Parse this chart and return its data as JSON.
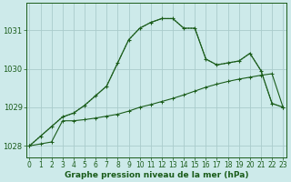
{
  "title": "Graphe pression niveau de la mer (hPa)",
  "background_color": "#cdeaea",
  "grid_color": "#aacccc",
  "line_color": "#1a5c1a",
  "xlim": [
    -0.3,
    23.3
  ],
  "ylim": [
    1027.7,
    1031.7
  ],
  "yticks": [
    1028,
    1029,
    1030,
    1031
  ],
  "xticks": [
    0,
    1,
    2,
    3,
    4,
    5,
    6,
    7,
    8,
    9,
    10,
    11,
    12,
    13,
    14,
    15,
    16,
    17,
    18,
    19,
    20,
    21,
    22,
    23
  ],
  "hours": [
    0,
    1,
    2,
    3,
    4,
    5,
    6,
    7,
    8,
    9,
    10,
    11,
    12,
    13,
    14,
    15,
    16,
    17,
    18,
    19,
    20,
    21,
    22,
    23
  ],
  "pressure_main": [
    1028.0,
    1028.25,
    1028.5,
    1028.75,
    1028.85,
    1029.05,
    1029.3,
    1029.55,
    1030.15,
    1030.75,
    1031.05,
    1031.2,
    1031.3,
    1031.3,
    1031.05,
    1031.05,
    1030.25,
    1030.1,
    1030.15,
    1030.2,
    1030.4,
    1029.95,
    1029.1,
    1029.0
  ],
  "pressure_flat": [
    1028.0,
    1028.05,
    1028.1,
    1028.65,
    1028.65,
    1028.68,
    1028.72,
    1028.77,
    1028.82,
    1028.9,
    1029.0,
    1029.07,
    1029.15,
    1029.23,
    1029.32,
    1029.42,
    1029.52,
    1029.6,
    1029.67,
    1029.73,
    1029.78,
    1029.83,
    1029.87,
    1029.0
  ]
}
